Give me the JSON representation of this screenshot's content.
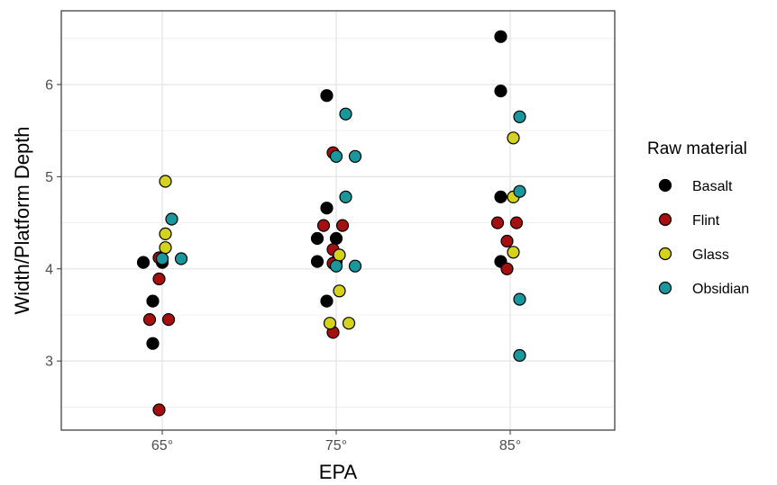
{
  "chart_data": {
    "type": "scatter",
    "xlabel": "EPA",
    "ylabel": "Width/Platform Depth",
    "categories": [
      "65°",
      "75°",
      "85°"
    ],
    "ylim": [
      2.25,
      6.8
    ],
    "yticks": [
      3,
      4,
      5,
      6
    ],
    "grid": true,
    "legend": {
      "title": "Raw material",
      "placement": "right"
    },
    "series": [
      {
        "name": "Basalt",
        "color": "#000000",
        "points": [
          {
            "x": "65°",
            "y": 4.07
          },
          {
            "x": "65°",
            "y": 4.07
          },
          {
            "x": "65°",
            "y": 3.65
          },
          {
            "x": "65°",
            "y": 3.19
          },
          {
            "x": "75°",
            "y": 5.88
          },
          {
            "x": "75°",
            "y": 4.66
          },
          {
            "x": "75°",
            "y": 4.33
          },
          {
            "x": "75°",
            "y": 4.33
          },
          {
            "x": "75°",
            "y": 4.08
          },
          {
            "x": "75°",
            "y": 4.08
          },
          {
            "x": "75°",
            "y": 3.65
          },
          {
            "x": "85°",
            "y": 6.52
          },
          {
            "x": "85°",
            "y": 5.93
          },
          {
            "x": "85°",
            "y": 4.78
          },
          {
            "x": "85°",
            "y": 4.08
          }
        ]
      },
      {
        "name": "Flint",
        "color": "#a50f0f",
        "points": [
          {
            "x": "65°",
            "y": 4.12
          },
          {
            "x": "65°",
            "y": 3.89
          },
          {
            "x": "65°",
            "y": 3.45
          },
          {
            "x": "65°",
            "y": 3.45
          },
          {
            "x": "65°",
            "y": 2.47
          },
          {
            "x": "75°",
            "y": 5.26
          },
          {
            "x": "75°",
            "y": 4.47
          },
          {
            "x": "75°",
            "y": 4.47
          },
          {
            "x": "75°",
            "y": 4.21
          },
          {
            "x": "75°",
            "y": 4.06
          },
          {
            "x": "75°",
            "y": 3.31
          },
          {
            "x": "85°",
            "y": 4.5
          },
          {
            "x": "85°",
            "y": 4.5
          },
          {
            "x": "85°",
            "y": 4.3
          },
          {
            "x": "85°",
            "y": 4.0
          }
        ]
      },
      {
        "name": "Glass",
        "color": "#d4d21a",
        "points": [
          {
            "x": "65°",
            "y": 4.95
          },
          {
            "x": "65°",
            "y": 4.38
          },
          {
            "x": "65°",
            "y": 4.23
          },
          {
            "x": "75°",
            "y": 4.15
          },
          {
            "x": "75°",
            "y": 3.76
          },
          {
            "x": "75°",
            "y": 3.41
          },
          {
            "x": "75°",
            "y": 3.41
          },
          {
            "x": "85°",
            "y": 5.42
          },
          {
            "x": "85°",
            "y": 4.78
          },
          {
            "x": "85°",
            "y": 4.18
          }
        ]
      },
      {
        "name": "Obsidian",
        "color": "#19979c",
        "points": [
          {
            "x": "65°",
            "y": 4.54
          },
          {
            "x": "65°",
            "y": 4.11
          },
          {
            "x": "65°",
            "y": 4.11
          },
          {
            "x": "75°",
            "y": 5.68
          },
          {
            "x": "75°",
            "y": 5.22
          },
          {
            "x": "75°",
            "y": 5.22
          },
          {
            "x": "75°",
            "y": 4.78
          },
          {
            "x": "75°",
            "y": 4.03
          },
          {
            "x": "75°",
            "y": 4.03
          },
          {
            "x": "85°",
            "y": 5.65
          },
          {
            "x": "85°",
            "y": 4.84
          },
          {
            "x": "85°",
            "y": 3.67
          },
          {
            "x": "85°",
            "y": 3.06
          }
        ]
      }
    ]
  }
}
